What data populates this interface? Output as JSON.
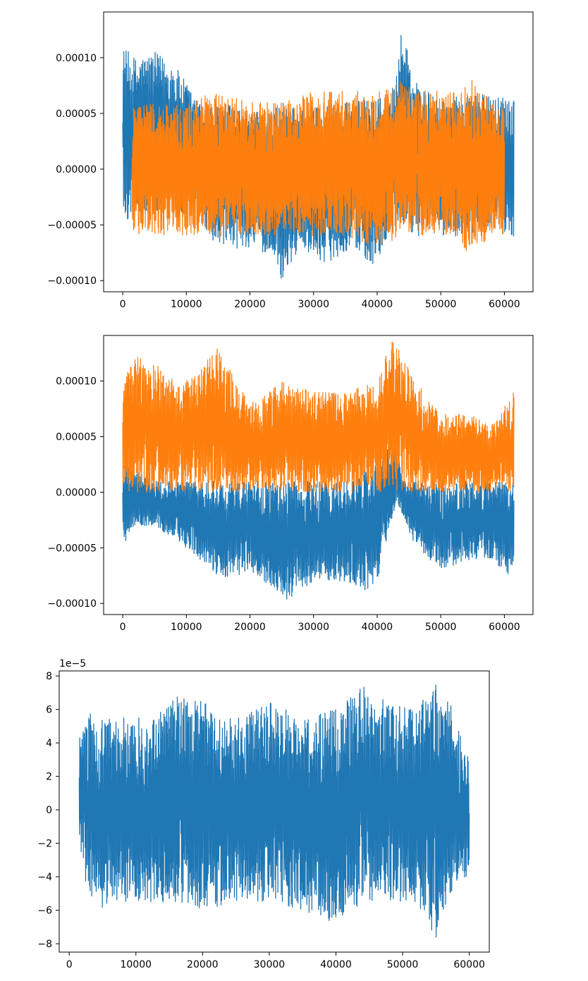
{
  "chart_data": [
    {
      "type": "line",
      "title": "",
      "xlabel": "",
      "ylabel": "",
      "xlim": [
        -3000,
        64500
      ],
      "ylim": [
        -0.00011,
        0.000141
      ],
      "x_ticks": [
        0,
        10000,
        20000,
        30000,
        40000,
        50000,
        60000
      ],
      "x_tick_labels": [
        "0",
        "10000",
        "20000",
        "30000",
        "40000",
        "50000",
        "60000"
      ],
      "y_ticks": [
        -0.0001,
        -5e-05,
        0,
        5e-05,
        0.0001
      ],
      "y_tick_labels": [
        "−0.00010",
        "−0.00005",
        "0.00000",
        "0.00005",
        "0.00010"
      ],
      "grid": false,
      "legend": "none",
      "series": [
        {
          "color": "#1f77b4",
          "x_range": [
            0,
            61500
          ],
          "envelope": {
            "x": [
              0,
              2000,
              5000,
              8000,
              12000,
              16000,
              20000,
              24000,
              25000,
              28000,
              32000,
              36000,
              40000,
              42000,
              44000,
              46000,
              50000,
              55000,
              58000,
              61500
            ],
            "upper": [
              0.00011,
              0.0001,
              0.000105,
              9.5e-05,
              6e-05,
              6e-05,
              5e-05,
              5.5e-05,
              6e-05,
              5.5e-05,
              6e-05,
              6e-05,
              6.5e-05,
              6e-05,
              0.00013,
              8e-05,
              6e-05,
              7e-05,
              6.5e-05,
              7e-05
            ],
            "lower": [
              -5e-05,
              -4e-05,
              -4e-05,
              -4e-05,
              -5e-05,
              -7.5e-05,
              -7e-05,
              -8e-05,
              -0.0001,
              -7e-05,
              -8.5e-05,
              -7e-05,
              -9e-05,
              -6e-05,
              -5e-05,
              -6e-05,
              -6e-05,
              -6e-05,
              -5e-05,
              -6e-05
            ]
          }
        },
        {
          "color": "#ff7f0e",
          "x_range": [
            1500,
            60000
          ],
          "envelope": {
            "x": [
              1500,
              5000,
              10000,
              15000,
              20000,
              25000,
              30000,
              35000,
              40000,
              44000,
              48000,
              52000,
              55000,
              58000,
              60000
            ],
            "upper": [
              6e-05,
              6e-05,
              6e-05,
              7e-05,
              6e-05,
              6e-05,
              7e-05,
              7e-05,
              7e-05,
              8e-05,
              7e-05,
              7e-05,
              8e-05,
              6e-05,
              6e-05
            ],
            "lower": [
              -6e-05,
              -6e-05,
              -6e-05,
              -6e-05,
              -6e-05,
              -6e-05,
              -6e-05,
              -6e-05,
              -7e-05,
              -6e-05,
              -6e-05,
              -6e-05,
              -8e-05,
              -6e-05,
              -6e-05
            ]
          }
        }
      ]
    },
    {
      "type": "line",
      "title": "",
      "xlabel": "",
      "ylabel": "",
      "xlim": [
        -3000,
        64500
      ],
      "ylim": [
        -0.00011,
        0.000141
      ],
      "x_ticks": [
        0,
        10000,
        20000,
        30000,
        40000,
        50000,
        60000
      ],
      "x_tick_labels": [
        "0",
        "10000",
        "20000",
        "30000",
        "40000",
        "50000",
        "60000"
      ],
      "y_ticks": [
        -0.0001,
        -5e-05,
        0,
        5e-05,
        0.0001
      ],
      "y_tick_labels": [
        "−0.00010",
        "−0.00005",
        "0.00000",
        "0.00005",
        "0.00010"
      ],
      "grid": false,
      "legend": "none",
      "series": [
        {
          "color": "#1f77b4",
          "x_range": [
            0,
            61500
          ],
          "envelope": {
            "x": [
              0,
              2000,
              5000,
              10000,
              16000,
              20000,
              24000,
              25000,
              30000,
              35000,
              38000,
              40000,
              42000,
              43000,
              44000,
              46000,
              50000,
              55000,
              58000,
              61500
            ],
            "upper": [
              3e-05,
              2e-05,
              1e-05,
              1e-05,
              1e-05,
              1e-05,
              1e-05,
              1e-05,
              1e-05,
              1e-05,
              2e-05,
              3e-05,
              4e-05,
              4.5e-05,
              1e-05,
              1e-05,
              1e-05,
              1e-05,
              1e-05,
              1e-05
            ],
            "lower": [
              -5e-05,
              -3e-05,
              -3e-05,
              -5e-05,
              -8e-05,
              -7e-05,
              -9e-05,
              -0.0001,
              -8e-05,
              -8e-05,
              -9e-05,
              -8e-05,
              -3e-05,
              -1e-05,
              -2e-05,
              -5e-05,
              -7e-05,
              -6e-05,
              -6e-05,
              -8e-05
            ]
          }
        },
        {
          "color": "#ff7f0e",
          "x_range": [
            0,
            61500
          ],
          "envelope": {
            "x": [
              0,
              1000,
              5000,
              10000,
              15000,
              20000,
              25000,
              30000,
              35000,
              40000,
              42000,
              44000,
              46000,
              50000,
              55000,
              58000,
              61500
            ],
            "upper": [
              0.0001,
              0.000125,
              0.000115,
              0.0001,
              0.00013,
              8e-05,
              0.0001,
              9e-05,
              9e-05,
              0.0001,
              0.000138,
              0.000125,
              0.0001,
              7e-05,
              7e-05,
              6e-05,
              9e-05
            ],
            "lower": [
              0.0,
              0.0,
              0.0,
              0.0,
              0.0,
              0.0,
              0.0,
              0.0,
              0.0,
              0.0,
              0.0,
              0.0,
              0.0,
              0.0,
              0.0,
              0.0,
              0.0
            ]
          }
        }
      ]
    },
    {
      "type": "line",
      "title": "",
      "xlabel": "",
      "ylabel": "",
      "offset_text": "1e−5",
      "xlim": [
        -1500,
        63000
      ],
      "ylim": [
        -8.5,
        8.3
      ],
      "x_ticks": [
        0,
        10000,
        20000,
        30000,
        40000,
        50000,
        60000
      ],
      "x_tick_labels": [
        "0",
        "10000",
        "20000",
        "30000",
        "40000",
        "50000",
        "60000"
      ],
      "y_ticks": [
        -8,
        -6,
        -4,
        -2,
        0,
        2,
        4,
        6,
        8
      ],
      "y_tick_labels": [
        "−8",
        "−6",
        "−4",
        "−2",
        "0",
        "2",
        "4",
        "6",
        "8"
      ],
      "grid": false,
      "legend": "none",
      "series": [
        {
          "color": "#1f77b4",
          "x_range": [
            1500,
            60000
          ],
          "envelope": {
            "x": [
              1500,
              3000,
              5000,
              8000,
              12000,
              16000,
              20000,
              25000,
              30000,
              35000,
              40000,
              44000,
              48000,
              52000,
              55000,
              57000,
              60000
            ],
            "upper": [
              4.5,
              6.0,
              5.5,
              5.5,
              5.5,
              6.8,
              6.5,
              5.5,
              6.5,
              5.5,
              6.0,
              7.4,
              6.4,
              6.0,
              7.6,
              6.5,
              3.0
            ],
            "lower": [
              -3.0,
              -5.0,
              -6.0,
              -5.5,
              -5.5,
              -5.5,
              -6.0,
              -5.5,
              -5.5,
              -6.0,
              -6.8,
              -5.5,
              -5.5,
              -5.5,
              -7.8,
              -5.0,
              -4.0
            ]
          }
        }
      ]
    }
  ]
}
